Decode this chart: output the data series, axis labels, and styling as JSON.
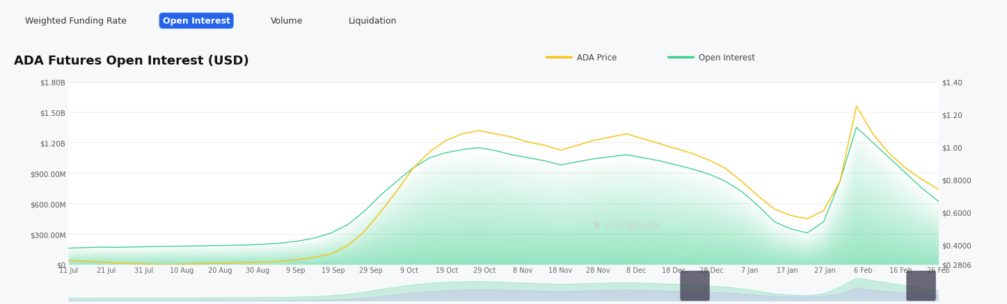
{
  "title": "ADA Futures Open Interest (USD)",
  "tab_labels": [
    "Weighted Funding Rate",
    "Open Interest",
    "Volume",
    "Liquidation"
  ],
  "active_tab": "Open Interest",
  "legend": [
    "ADA Price",
    "Open Interest"
  ],
  "legend_colors": [
    "#f5c518",
    "#3ecf8e"
  ],
  "background_color": "#f7f8fa",
  "chart_bg": "#ffffff",
  "left_yticks": [
    "$0",
    "$300.00M",
    "$600.00M",
    "$900.00M",
    "$1.20B",
    "$1.50B",
    "$1.80B"
  ],
  "left_yvalues": [
    0,
    300000000,
    600000000,
    900000000,
    1200000000,
    1500000000,
    1800000000
  ],
  "right_yticks": [
    "$0.2806",
    "$0.4000",
    "$0.6000",
    "$0.8000",
    "$1.00",
    "$1.20",
    "$1.40"
  ],
  "right_yvalues": [
    0.2806,
    0.4,
    0.6,
    0.8,
    1.0,
    1.2,
    1.4
  ],
  "xtick_labels": [
    "11 Jul",
    "21 Jul",
    "31 Jul",
    "10 Aug",
    "20 Aug",
    "30 Aug",
    "9 Sep",
    "19 Sep",
    "29 Sep",
    "9 Oct",
    "19 Oct",
    "29 Oct",
    "8 Nov",
    "18 Nov",
    "28 Nov",
    "8 Dec",
    "18 Dec",
    "28 Dec",
    "7 Jan",
    "17 Jan",
    "27 Jan",
    "6 Feb",
    "16 Feb",
    "26 Feb"
  ],
  "open_interest": [
    160000000,
    165000000,
    170000000,
    168000000,
    172000000,
    175000000,
    178000000,
    180000000,
    182000000,
    185000000,
    188000000,
    192000000,
    200000000,
    210000000,
    230000000,
    260000000,
    310000000,
    390000000,
    520000000,
    680000000,
    820000000,
    950000000,
    1050000000,
    1100000000,
    1130000000,
    1150000000,
    1120000000,
    1080000000,
    1050000000,
    1020000000,
    980000000,
    1010000000,
    1040000000,
    1060000000,
    1080000000,
    1050000000,
    1020000000,
    980000000,
    940000000,
    890000000,
    820000000,
    720000000,
    580000000,
    420000000,
    350000000,
    310000000,
    420000000,
    820000000,
    1350000000,
    1200000000,
    1050000000,
    900000000,
    750000000,
    620000000
  ],
  "ada_price": [
    0.305,
    0.3,
    0.295,
    0.29,
    0.285,
    0.282,
    0.28,
    0.282,
    0.285,
    0.288,
    0.29,
    0.292,
    0.295,
    0.3,
    0.31,
    0.325,
    0.345,
    0.395,
    0.48,
    0.6,
    0.73,
    0.87,
    0.97,
    1.04,
    1.08,
    1.1,
    1.08,
    1.06,
    1.03,
    1.01,
    0.98,
    1.01,
    1.04,
    1.06,
    1.08,
    1.05,
    1.02,
    0.99,
    0.96,
    0.92,
    0.87,
    0.79,
    0.7,
    0.62,
    0.58,
    0.56,
    0.61,
    0.79,
    1.25,
    1.08,
    0.96,
    0.87,
    0.8,
    0.74
  ],
  "oi_color": "#3ecf8e",
  "price_color": "#f5c518",
  "watermark_text": "coinglass",
  "left_ylim": [
    0,
    1800000000
  ],
  "right_ylim": [
    0.2806,
    1.4
  ]
}
